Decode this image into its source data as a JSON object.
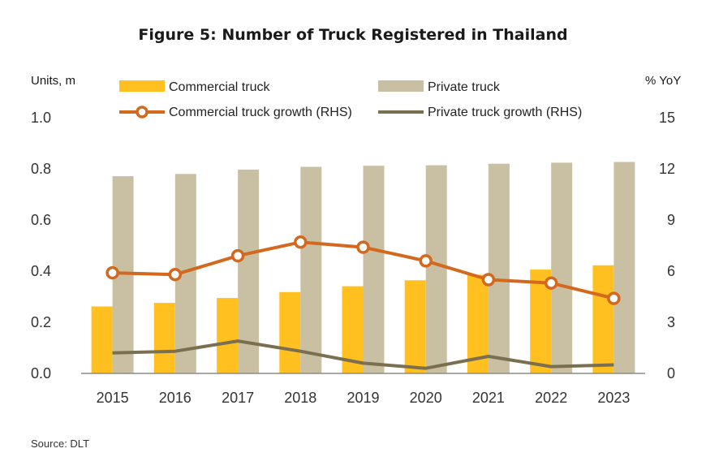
{
  "chart_data": {
    "type": "bar",
    "title": "Figure 5: Number of Truck Registered in Thailand",
    "left_axis_label": "Units, m",
    "right_axis_label": "% YoY",
    "categories": [
      "2015",
      "2016",
      "2017",
      "2018",
      "2019",
      "2020",
      "2021",
      "2022",
      "2023"
    ],
    "ylim_left": [
      0,
      1.0
    ],
    "yticks_left": [
      "0.0",
      "0.2",
      "0.4",
      "0.6",
      "0.8",
      "1.0"
    ],
    "ylim_right": [
      0,
      15
    ],
    "yticks_right": [
      "0",
      "3",
      "6",
      "9",
      "12",
      "15"
    ],
    "series": [
      {
        "name": "Commercial truck",
        "kind": "bar",
        "axis": "left",
        "color": "#FFC020",
        "values": [
          0.262,
          0.276,
          0.295,
          0.318,
          0.341,
          0.364,
          0.386,
          0.406,
          0.423
        ]
      },
      {
        "name": "Private truck",
        "kind": "bar",
        "axis": "left",
        "color": "#C9C0A4",
        "values": [
          0.771,
          0.78,
          0.797,
          0.808,
          0.812,
          0.814,
          0.82,
          0.824,
          0.827
        ]
      },
      {
        "name": "Commercial truck growth (RHS)",
        "kind": "line",
        "axis": "right",
        "color": "#D2691E",
        "marker": "circle",
        "values": [
          5.9,
          5.8,
          6.9,
          7.7,
          7.4,
          6.6,
          5.5,
          5.3,
          4.4
        ]
      },
      {
        "name": "Private truck growth (RHS)",
        "kind": "line",
        "axis": "right",
        "color": "#7A7050",
        "values": [
          1.2,
          1.3,
          1.9,
          1.3,
          0.6,
          0.3,
          1.0,
          0.4,
          0.5
        ]
      }
    ],
    "legend_position": "top",
    "grid": false
  },
  "source": "Source: DLT"
}
